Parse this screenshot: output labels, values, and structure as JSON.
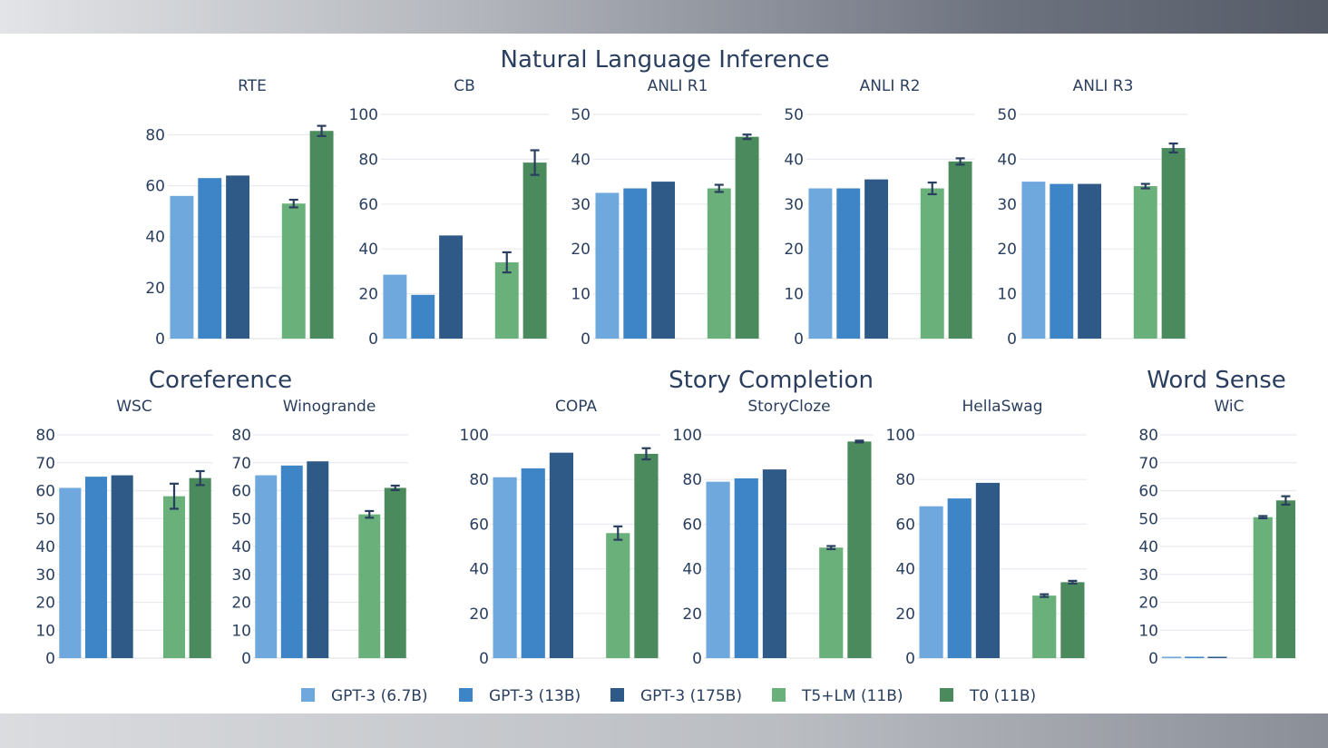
{
  "colors": {
    "GPT-3 (6.7B)": "#6fa8dc",
    "GPT-3 (13B)": "#3d85c6",
    "GPT-3 (175B)": "#2f5a88",
    "T5+LM (11B)": "#6ab07a",
    "T0 (11B)": "#4a8a5c"
  },
  "group_titles": {
    "nli": "Natural Language Inference",
    "coref": "Coreference",
    "story": "Story Completion",
    "wsense": "Word Sense"
  },
  "chart_data": {
    "type": "bar",
    "series_names": [
      "GPT-3 (6.7B)",
      "GPT-3 (13B)",
      "GPT-3 (175B)",
      "T5+LM (11B)",
      "T0 (11B)"
    ],
    "legend": [
      "GPT-3 (6.7B)",
      "GPT-3 (13B)",
      "GPT-3 (175B)",
      "T5+LM (11B)",
      "T0 (11B)"
    ],
    "legend_position": "bottom-center",
    "panels": [
      {
        "id": "rte",
        "group": "Natural Language Inference",
        "title": "RTE",
        "ylim": [
          0,
          88
        ],
        "ticks": [
          0,
          20,
          40,
          60,
          80
        ],
        "values": [
          56,
          63,
          64,
          53,
          81.5
        ],
        "errors": [
          0,
          0,
          0,
          1.5,
          2
        ]
      },
      {
        "id": "cb",
        "group": "Natural Language Inference",
        "title": "CB",
        "ylim": [
          0,
          100
        ],
        "ticks": [
          0,
          20,
          40,
          60,
          80,
          100
        ],
        "values": [
          28.5,
          19.5,
          46,
          34,
          78.5
        ],
        "errors": [
          0,
          0,
          0,
          4.5,
          5.5
        ]
      },
      {
        "id": "anli_r1",
        "group": "Natural Language Inference",
        "title": "ANLI R1",
        "ylim": [
          0,
          50
        ],
        "ticks": [
          0,
          10,
          20,
          30,
          40,
          50
        ],
        "values": [
          32.5,
          33.5,
          35,
          33.5,
          45
        ],
        "errors": [
          0,
          0,
          0,
          0.8,
          0.5
        ]
      },
      {
        "id": "anli_r2",
        "group": "Natural Language Inference",
        "title": "ANLI R2",
        "ylim": [
          0,
          50
        ],
        "ticks": [
          0,
          10,
          20,
          30,
          40,
          50
        ],
        "values": [
          33.5,
          33.5,
          35.5,
          33.5,
          39.5
        ],
        "errors": [
          0,
          0,
          0,
          1.3,
          0.7
        ]
      },
      {
        "id": "anli_r3",
        "group": "Natural Language Inference",
        "title": "ANLI R3",
        "ylim": [
          0,
          50
        ],
        "ticks": [
          0,
          10,
          20,
          30,
          40,
          50
        ],
        "values": [
          35,
          34.5,
          34.5,
          34,
          42.5
        ],
        "errors": [
          0,
          0,
          0,
          0.5,
          1
        ]
      },
      {
        "id": "wsc",
        "group": "Coreference",
        "title": "WSC",
        "ylim": [
          0,
          80
        ],
        "ticks": [
          0,
          10,
          20,
          30,
          40,
          50,
          60,
          70,
          80
        ],
        "values": [
          61,
          65,
          65.5,
          58,
          64.5
        ],
        "errors": [
          0,
          0,
          0,
          4.5,
          2.5
        ]
      },
      {
        "id": "winogrande",
        "group": "Coreference",
        "title": "Winogrande",
        "ylim": [
          0,
          80
        ],
        "ticks": [
          0,
          10,
          20,
          30,
          40,
          50,
          60,
          70,
          80
        ],
        "values": [
          65.5,
          69,
          70.5,
          51.5,
          61
        ],
        "errors": [
          0,
          0,
          0,
          1.2,
          0.8
        ]
      },
      {
        "id": "copa",
        "group": "Story Completion",
        "title": "COPA",
        "ylim": [
          0,
          100
        ],
        "ticks": [
          0,
          20,
          40,
          60,
          80,
          100
        ],
        "values": [
          81,
          85,
          92,
          56,
          91.5
        ],
        "errors": [
          0,
          0,
          0,
          3,
          2.5
        ]
      },
      {
        "id": "storycloze",
        "group": "Story Completion",
        "title": "StoryCloze",
        "ylim": [
          0,
          100
        ],
        "ticks": [
          0,
          20,
          40,
          60,
          80,
          100
        ],
        "values": [
          79,
          80.5,
          84.5,
          49.5,
          97
        ],
        "errors": [
          0,
          0,
          0,
          0.7,
          0.4
        ]
      },
      {
        "id": "hellaswag",
        "group": "Story Completion",
        "title": "HellaSwag",
        "ylim": [
          0,
          100
        ],
        "ticks": [
          0,
          20,
          40,
          60,
          80,
          100
        ],
        "values": [
          68,
          71.5,
          78.5,
          28,
          34
        ],
        "errors": [
          0,
          0,
          0,
          0.6,
          0.6
        ]
      },
      {
        "id": "wic",
        "group": "Word Sense",
        "title": "WiC",
        "ylim": [
          0,
          80
        ],
        "ticks": [
          0,
          10,
          20,
          30,
          40,
          50,
          60,
          70,
          80
        ],
        "values": [
          0.5,
          0.5,
          0.5,
          50.5,
          56.5
        ],
        "errors": [
          0,
          0,
          0,
          0.4,
          1.5
        ]
      }
    ]
  }
}
